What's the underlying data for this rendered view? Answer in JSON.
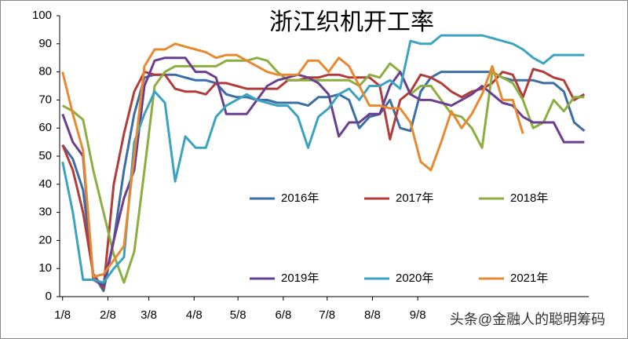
{
  "chart_data": {
    "type": "line",
    "title": "浙江织机开工率",
    "watermark": "头条@金融人的聪明筹码",
    "x": [
      0,
      7,
      14,
      21,
      28,
      35,
      42,
      49,
      56,
      63,
      70,
      77,
      84,
      91,
      98,
      105,
      112,
      119,
      126,
      133,
      140,
      147,
      154,
      161,
      168,
      175,
      182,
      189,
      196,
      203,
      210,
      217,
      224,
      231,
      238,
      245,
      252,
      259,
      266,
      273,
      280,
      287,
      294,
      301,
      308,
      315,
      322,
      329,
      336,
      343,
      350,
      357
    ],
    "xlim": [
      -2,
      360
    ],
    "xticks": [
      {
        "value": 0,
        "label": "1/8"
      },
      {
        "value": 31,
        "label": "2/8"
      },
      {
        "value": 59,
        "label": "3/8"
      },
      {
        "value": 90,
        "label": "4/8"
      },
      {
        "value": 120,
        "label": "5/8"
      },
      {
        "value": 151,
        "label": "6/8"
      },
      {
        "value": 181,
        "label": "7/8"
      },
      {
        "value": 212,
        "label": "8/8"
      },
      {
        "value": 243,
        "label": "9/8"
      }
    ],
    "ylim": [
      0,
      100
    ],
    "yticks": [
      0,
      10,
      20,
      30,
      40,
      50,
      60,
      70,
      80,
      90,
      100
    ],
    "grid": false,
    "series": [
      {
        "name": "2016年",
        "color": "#3b6ea5",
        "values": [
          54,
          49,
          38,
          8,
          2,
          20,
          45,
          65,
          78,
          79,
          79,
          79,
          78,
          77,
          77,
          76,
          72,
          71,
          71,
          70,
          70,
          69,
          69,
          69,
          68,
          71,
          71,
          72,
          70,
          60,
          64,
          65,
          70,
          60,
          59,
          73,
          78,
          80,
          80,
          80,
          80,
          80,
          80,
          78,
          77,
          77,
          77,
          76,
          76,
          73,
          62,
          59
        ]
      },
      {
        "name": "2017年",
        "color": "#b23c3a",
        "values": [
          54,
          45,
          30,
          8,
          3,
          40,
          58,
          73,
          80,
          79,
          79,
          74,
          73,
          73,
          72,
          76,
          76,
          75,
          74,
          74,
          74,
          74,
          77,
          77,
          78,
          78,
          79,
          79,
          78,
          78,
          78,
          75,
          56,
          70,
          73,
          79,
          78,
          76,
          73,
          71,
          73,
          74,
          76,
          80,
          79,
          71,
          81,
          80,
          78,
          77,
          70,
          72
        ]
      },
      {
        "name": "2018年",
        "color": "#8cad3f",
        "values": [
          68,
          66,
          63,
          45,
          30,
          15,
          5,
          16,
          45,
          75,
          80,
          82,
          82,
          82,
          82,
          82,
          84,
          84,
          84,
          85,
          84,
          80,
          77,
          77,
          77,
          77,
          77,
          77,
          77,
          75,
          79,
          78,
          83,
          80,
          72,
          75,
          75,
          70,
          65,
          64,
          60,
          53,
          80,
          78,
          76,
          70,
          60,
          62,
          70,
          66,
          71,
          71
        ]
      },
      {
        "name": "2019年",
        "color": "#6b3f8f",
        "values": [
          65,
          55,
          50,
          6,
          4,
          20,
          35,
          45,
          75,
          84,
          85,
          85,
          85,
          80,
          80,
          78,
          65,
          65,
          65,
          70,
          75,
          77,
          78,
          79,
          78,
          76,
          72,
          57,
          62,
          62,
          65,
          65,
          75,
          80,
          72,
          70,
          70,
          69,
          68,
          70,
          72,
          75,
          72,
          69,
          68,
          64,
          62,
          62,
          62,
          55,
          55,
          55
        ]
      },
      {
        "name": "2020年",
        "color": "#3ba3c0",
        "values": [
          48,
          30,
          6,
          6,
          5,
          10,
          14,
          55,
          65,
          73,
          69,
          41,
          57,
          53,
          53,
          64,
          68,
          70,
          72,
          70,
          69,
          68,
          68,
          64,
          53,
          64,
          67,
          72,
          74,
          70,
          75,
          75,
          77,
          74,
          91,
          90,
          90,
          93,
          93,
          93,
          93,
          93,
          92,
          91,
          90,
          88,
          85,
          83,
          86,
          86,
          86,
          86
        ]
      },
      {
        "name": "2021年",
        "color": "#e8892f",
        "values": [
          80,
          65,
          52,
          7,
          8,
          13,
          18,
          50,
          82,
          88,
          88,
          90,
          89,
          88,
          87,
          85,
          86,
          86,
          84,
          82,
          80,
          79,
          79,
          79,
          84,
          84,
          80,
          85,
          82,
          75,
          68,
          68,
          67,
          67,
          62,
          48,
          45,
          55,
          66,
          60,
          65,
          72,
          82,
          70,
          70,
          58,
          null,
          null,
          null,
          null,
          null,
          null
        ]
      }
    ]
  }
}
